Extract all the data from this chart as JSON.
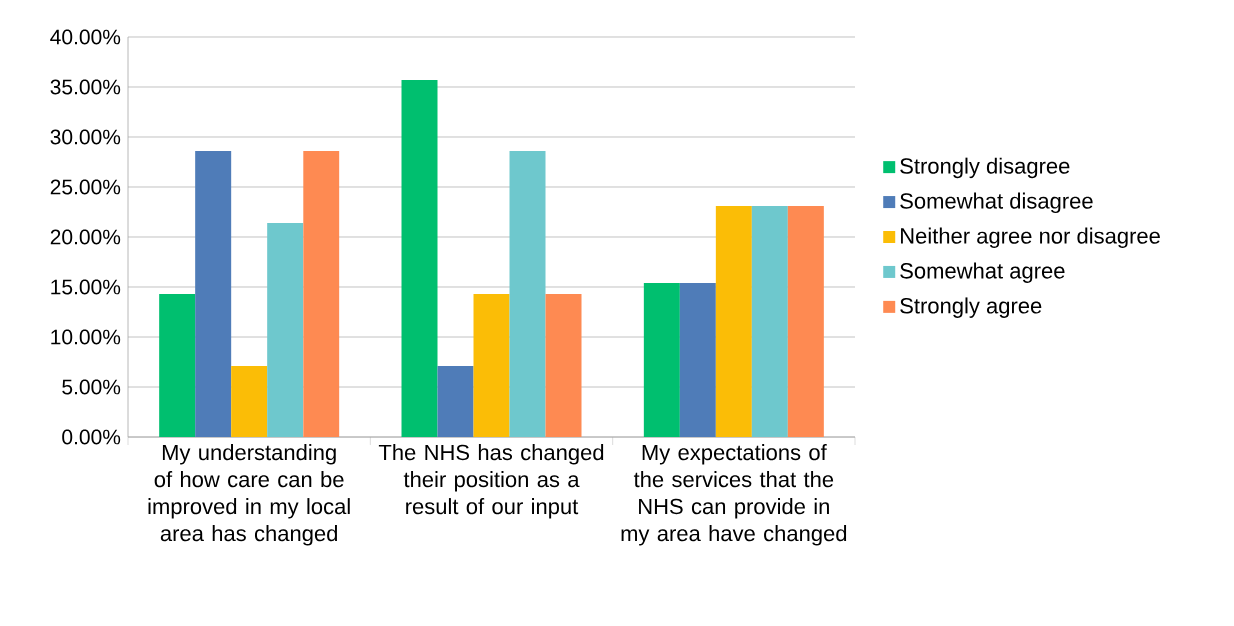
{
  "chart_data": {
    "type": "bar",
    "categories": [
      "My understanding of how care can be improved in my local area has changed",
      "The NHS has changed their position as a result of our input",
      "My expectations of the services that the NHS can provide in my area have changed"
    ],
    "series": [
      {
        "name": "Strongly disagree",
        "color": "#00bf6f",
        "values": [
          14.3,
          35.7,
          15.4
        ]
      },
      {
        "name": "Somewhat disagree",
        "color": "#4f7cb8",
        "values": [
          28.6,
          7.1,
          15.4
        ]
      },
      {
        "name": "Neither agree nor disagree",
        "color": "#fbbd06",
        "values": [
          7.1,
          14.3,
          23.1
        ]
      },
      {
        "name": "Somewhat agree",
        "color": "#6ec8cd",
        "values": [
          21.4,
          28.6,
          23.1
        ]
      },
      {
        "name": "Strongly agree",
        "color": "#fe8a52",
        "values": [
          28.6,
          14.3,
          23.1
        ]
      }
    ],
    "ylim": [
      0,
      40
    ],
    "yticks": [
      {
        "value": 0,
        "label": "0.00%"
      },
      {
        "value": 5,
        "label": "5.00%"
      },
      {
        "value": 10,
        "label": "10.00%"
      },
      {
        "value": 15,
        "label": "15.00%"
      },
      {
        "value": 20,
        "label": "20.00%"
      },
      {
        "value": 25,
        "label": "25.00%"
      },
      {
        "value": 30,
        "label": "30.00%"
      },
      {
        "value": 35,
        "label": "35.00%"
      },
      {
        "value": 40,
        "label": "40.00%"
      }
    ],
    "grid": "y",
    "legend": "right"
  }
}
